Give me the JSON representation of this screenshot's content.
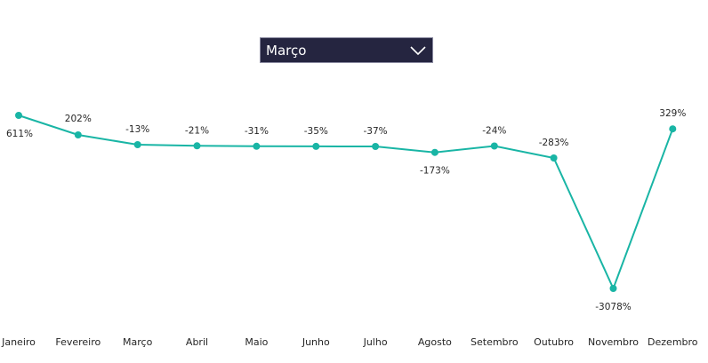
{
  "filter": {
    "selected": "Março",
    "chevron_icon": "chevron-down-icon"
  },
  "chart_data": {
    "type": "line",
    "title": "",
    "xlabel": "",
    "ylabel": "",
    "categories": [
      "Janeiro",
      "Fevereiro",
      "Março",
      "Abril",
      "Maio",
      "Junho",
      "Julho",
      "Agosto",
      "Setembro",
      "Outubro",
      "Novembro",
      "Dezembro"
    ],
    "series": [
      {
        "values": [
          611,
          202,
          -13,
          -21,
          -31,
          -35,
          -37,
          -173,
          -24,
          -283,
          -3078,
          329
        ],
        "labels": [
          "611%",
          "202%",
          "-13%",
          "-21%",
          "-31%",
          "-35%",
          "-37%",
          "-173%",
          "-24%",
          "-283%",
          "-3078%",
          "329%"
        ],
        "color": "#19b5a5"
      }
    ],
    "grid": false,
    "legend": "none"
  }
}
